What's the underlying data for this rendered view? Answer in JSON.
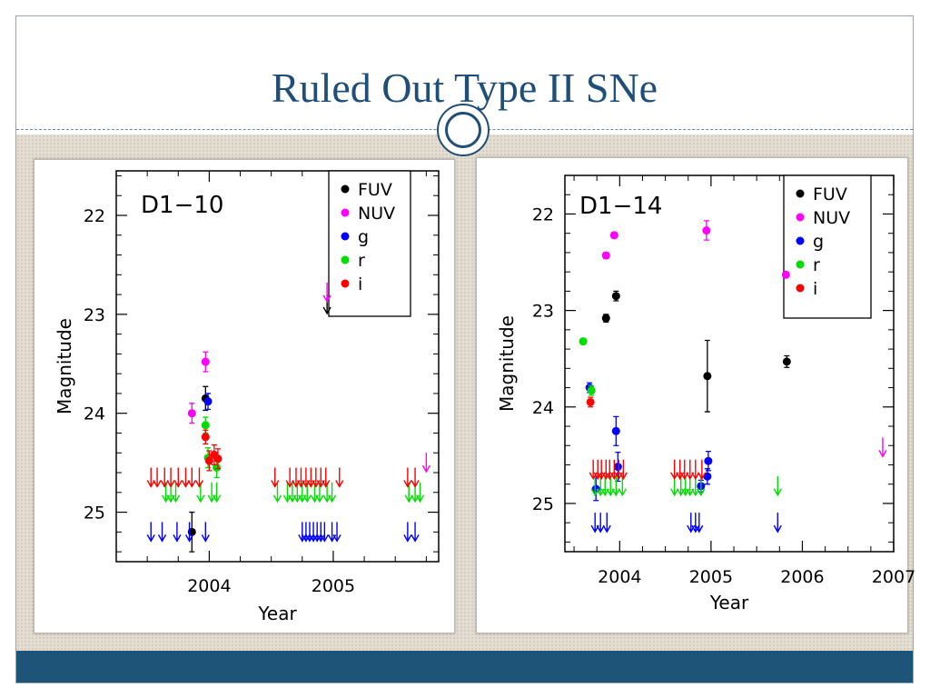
{
  "slide": {
    "title": "Ruled Out Type II SNe",
    "colors": {
      "title": "#1f4e79",
      "footer": "#1e5477",
      "background_texture": "#e3ddd2"
    }
  },
  "chart_data": [
    {
      "type": "scatter",
      "title": "D1−10",
      "xlabel": "Year",
      "ylabel": "Magnitude",
      "xlim": [
        2003.25,
        2005.85
      ],
      "ylim": [
        25.5,
        21.55
      ],
      "y_inverted": true,
      "xticks": [
        2004,
        2005
      ],
      "xtick_labels": [
        "2004",
        "2005"
      ],
      "yticks": [
        22,
        23,
        24,
        25
      ],
      "ytick_labels": [
        "22",
        "23",
        "24",
        "25"
      ],
      "grid": false,
      "legend_position": "top-right",
      "legend": [
        {
          "label": "FUV",
          "color": "#000000"
        },
        {
          "label": "NUV",
          "color": "#ff00ff"
        },
        {
          "label": "g",
          "color": "#0000ff"
        },
        {
          "label": "r",
          "color": "#00dd00"
        },
        {
          "label": "i",
          "color": "#ff0000"
        }
      ],
      "series": [
        {
          "name": "FUV",
          "color": "#000000",
          "points": [
            [
              2003.86,
              25.2,
              0.2
            ],
            [
              2003.97,
              23.85,
              0.12
            ]
          ],
          "upper_limits": [
            [
              2004.95,
              22.9
            ]
          ]
        },
        {
          "name": "NUV",
          "color": "#ff00ff",
          "points": [
            [
              2003.86,
              24.0,
              0.1
            ],
            [
              2003.97,
              23.48,
              0.1
            ]
          ],
          "upper_limits": [
            [
              2004.95,
              22.78
            ],
            [
              2005.75,
              24.5
            ]
          ]
        },
        {
          "name": "g",
          "color": "#0000ff",
          "points": [
            [
              2003.99,
              23.88,
              0.08
            ]
          ],
          "upper_limits": [
            [
              2003.53,
              25.2
            ],
            [
              2003.62,
              25.2
            ],
            [
              2003.74,
              25.2
            ],
            [
              2003.84,
              25.2
            ],
            [
              2003.97,
              25.2
            ],
            [
              2004.75,
              25.2
            ],
            [
              2004.78,
              25.2
            ],
            [
              2004.81,
              25.2
            ],
            [
              2004.84,
              25.2
            ],
            [
              2004.87,
              25.2
            ],
            [
              2004.9,
              25.2
            ],
            [
              2004.93,
              25.2
            ],
            [
              2004.99,
              25.2
            ],
            [
              2005.03,
              25.2
            ],
            [
              2005.6,
              25.2
            ],
            [
              2005.66,
              25.2
            ]
          ]
        },
        {
          "name": "r",
          "color": "#00dd00",
          "points": [
            [
              2003.97,
              24.12,
              0.08
            ],
            [
              2003.99,
              24.45,
              0.1
            ],
            [
              2004.06,
              24.55,
              0.1
            ]
          ],
          "upper_limits": [
            [
              2003.65,
              24.8
            ],
            [
              2003.69,
              24.8
            ],
            [
              2003.73,
              24.8
            ],
            [
              2003.93,
              24.8
            ],
            [
              2004.02,
              24.8
            ],
            [
              2004.06,
              24.8
            ],
            [
              2004.55,
              24.8
            ],
            [
              2004.63,
              24.8
            ],
            [
              2004.67,
              24.8
            ],
            [
              2004.71,
              24.8
            ],
            [
              2004.75,
              24.8
            ],
            [
              2004.79,
              24.8
            ],
            [
              2004.85,
              24.8
            ],
            [
              2004.89,
              24.8
            ],
            [
              2004.95,
              24.8
            ],
            [
              2004.99,
              24.8
            ],
            [
              2005.61,
              24.8
            ],
            [
              2005.66,
              24.8
            ],
            [
              2005.7,
              24.8
            ]
          ]
        },
        {
          "name": "i",
          "color": "#ff0000",
          "points": [
            [
              2003.97,
              24.24,
              0.07
            ],
            [
              2004.0,
              24.48,
              0.1
            ],
            [
              2004.04,
              24.42,
              0.1
            ],
            [
              2004.07,
              24.46,
              0.1
            ]
          ],
          "upper_limits": [
            [
              2003.53,
              24.65
            ],
            [
              2003.58,
              24.65
            ],
            [
              2003.64,
              24.65
            ],
            [
              2003.69,
              24.65
            ],
            [
              2003.75,
              24.65
            ],
            [
              2003.81,
              24.65
            ],
            [
              2003.86,
              24.65
            ],
            [
              2003.92,
              24.65
            ],
            [
              2004.53,
              24.65
            ],
            [
              2004.65,
              24.65
            ],
            [
              2004.7,
              24.65
            ],
            [
              2004.74,
              24.65
            ],
            [
              2004.78,
              24.65
            ],
            [
              2004.82,
              24.65
            ],
            [
              2004.86,
              24.65
            ],
            [
              2004.9,
              24.65
            ],
            [
              2004.94,
              24.65
            ],
            [
              2005.05,
              24.65
            ],
            [
              2005.6,
              24.65
            ],
            [
              2005.66,
              24.65
            ]
          ]
        }
      ]
    },
    {
      "type": "scatter",
      "title": "D1−14",
      "xlabel": "Year",
      "ylabel": "Magnitude",
      "xlim": [
        2003.4,
        2007.0
      ],
      "ylim": [
        25.5,
        21.6
      ],
      "y_inverted": true,
      "xticks": [
        2004,
        2005,
        2006,
        2007
      ],
      "xtick_labels": [
        "2004",
        "2005",
        "2006",
        "2007"
      ],
      "yticks": [
        22,
        23,
        24,
        25
      ],
      "ytick_labels": [
        "22",
        "23",
        "24",
        "25"
      ],
      "grid": false,
      "legend_position": "top-right",
      "legend": [
        {
          "label": "FUV",
          "color": "#000000"
        },
        {
          "label": "NUV",
          "color": "#ff00ff"
        },
        {
          "label": "g",
          "color": "#0000ff"
        },
        {
          "label": "r",
          "color": "#00dd00"
        },
        {
          "label": "i",
          "color": "#ff0000"
        }
      ],
      "series": [
        {
          "name": "FUV",
          "color": "#000000",
          "points": [
            [
              2003.85,
              23.08,
              0.04
            ],
            [
              2003.96,
              22.85,
              0.05
            ],
            [
              2004.96,
              23.68,
              0.37
            ],
            [
              2005.83,
              23.53,
              0.06
            ]
          ],
          "upper_limits": []
        },
        {
          "name": "NUV",
          "color": "#ff00ff",
          "points": [
            [
              2003.85,
              22.43,
              0.03
            ],
            [
              2003.94,
              22.22,
              0.03
            ],
            [
              2004.95,
              22.17,
              0.1
            ],
            [
              2005.82,
              22.63,
              0.03
            ]
          ],
          "upper_limits": [
            [
              2006.88,
              24.42
            ]
          ]
        },
        {
          "name": "g",
          "color": "#0000ff",
          "points": [
            [
              2003.67,
              23.8,
              0.05
            ],
            [
              2003.74,
              24.85,
              0.12
            ],
            [
              2003.96,
              24.25,
              0.15
            ],
            [
              2003.98,
              24.62,
              0.15
            ],
            [
              2004.89,
              24.82,
              0.06
            ],
            [
              2004.96,
              24.72,
              0.08
            ],
            [
              2004.97,
              24.56,
              0.1
            ]
          ],
          "upper_limits": [
            [
              2003.73,
              25.2
            ],
            [
              2003.79,
              25.2
            ],
            [
              2003.86,
              25.2
            ],
            [
              2004.78,
              25.2
            ],
            [
              2004.83,
              25.2
            ],
            [
              2004.87,
              25.2
            ],
            [
              2005.73,
              25.2
            ]
          ]
        },
        {
          "name": "r",
          "color": "#00dd00",
          "points": [
            [
              2003.6,
              23.32,
              0.03
            ],
            [
              2003.69,
              23.83,
              0.05
            ]
          ],
          "upper_limits": [
            [
              2003.73,
              24.82
            ],
            [
              2003.79,
              24.82
            ],
            [
              2003.84,
              24.82
            ],
            [
              2003.9,
              24.82
            ],
            [
              2003.96,
              24.82
            ],
            [
              2004.03,
              24.82
            ],
            [
              2004.6,
              24.82
            ],
            [
              2004.67,
              24.82
            ],
            [
              2004.72,
              24.82
            ],
            [
              2004.77,
              24.82
            ],
            [
              2004.83,
              24.82
            ],
            [
              2004.89,
              24.82
            ],
            [
              2005.73,
              24.82
            ]
          ]
        },
        {
          "name": "i",
          "color": "#ff0000",
          "points": [
            [
              2003.68,
              23.95,
              0.05
            ]
          ],
          "upper_limits": [
            [
              2003.71,
              24.65
            ],
            [
              2003.76,
              24.65
            ],
            [
              2003.8,
              24.65
            ],
            [
              2003.85,
              24.65
            ],
            [
              2003.89,
              24.65
            ],
            [
              2003.94,
              24.65
            ],
            [
              2003.99,
              24.65
            ],
            [
              2004.04,
              24.65
            ],
            [
              2004.6,
              24.65
            ],
            [
              2004.66,
              24.65
            ],
            [
              2004.71,
              24.65
            ],
            [
              2004.77,
              24.65
            ],
            [
              2004.83,
              24.65
            ],
            [
              2004.9,
              24.65
            ]
          ]
        }
      ]
    }
  ]
}
